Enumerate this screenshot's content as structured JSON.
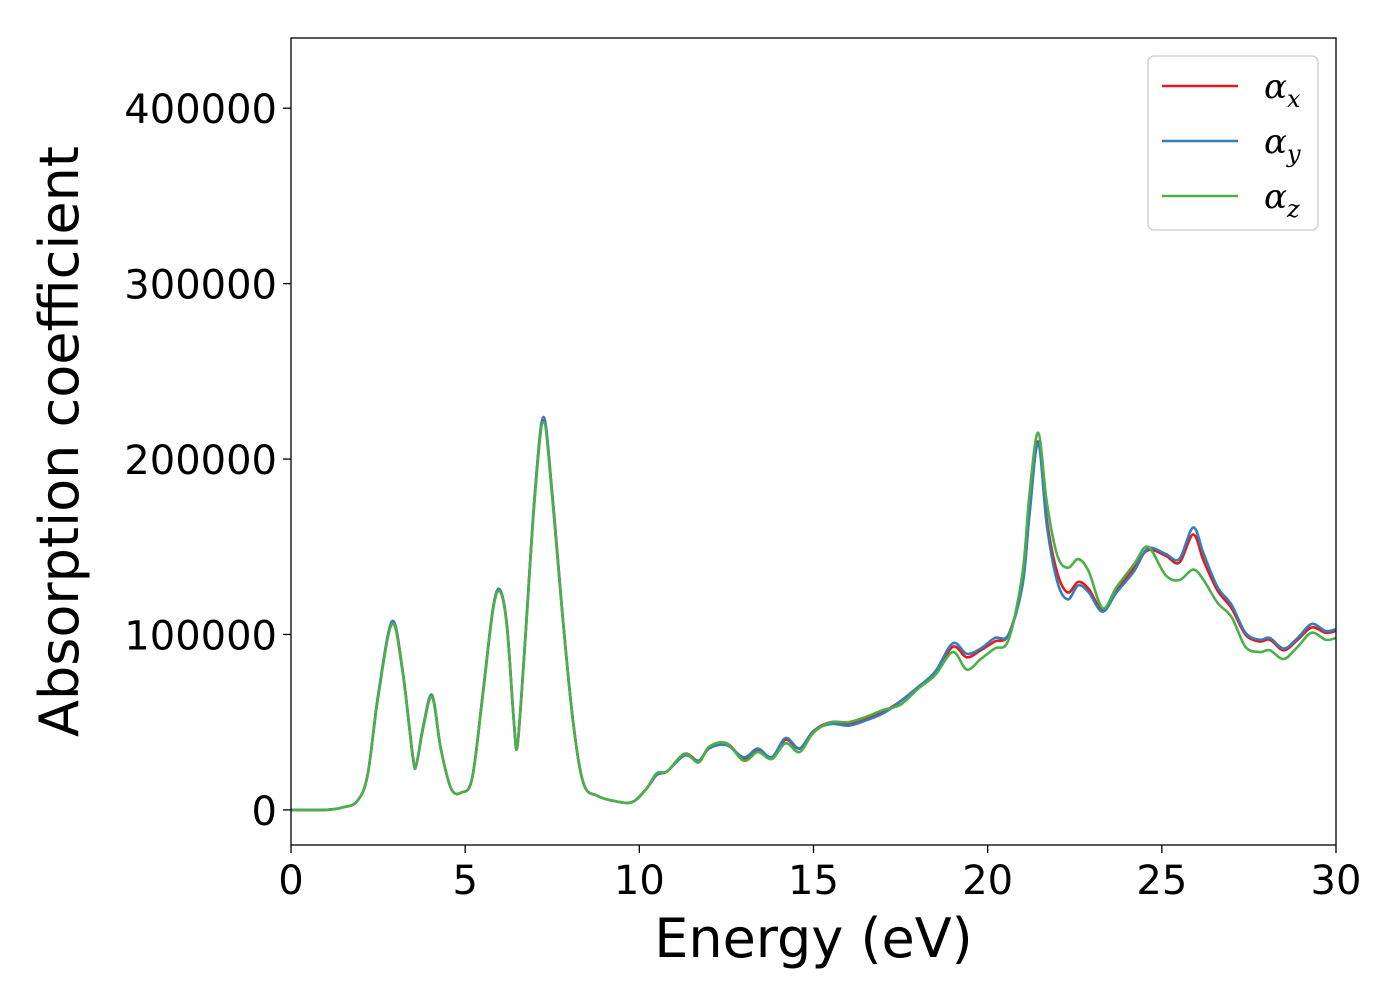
{
  "chart_data": {
    "type": "line",
    "title": "",
    "xlabel": "Energy (eV)",
    "ylabel": "Absorption coefficient",
    "xlim": [
      0,
      30
    ],
    "ylim": [
      -20000,
      440000
    ],
    "xticks": [
      0,
      5,
      10,
      15,
      20,
      25,
      30
    ],
    "xtick_labels": [
      "0",
      "5",
      "10",
      "15",
      "20",
      "25",
      "30"
    ],
    "yticks": [
      0,
      100000,
      200000,
      300000,
      400000
    ],
    "ytick_labels": [
      "0",
      "100000",
      "200000",
      "300000",
      "400000"
    ],
    "grid": false,
    "legend_position": "top-right",
    "series": [
      {
        "name": "α_x",
        "legend_base": "α",
        "legend_sub": "x",
        "color": "#e41a1c",
        "points": [
          [
            0,
            0
          ],
          [
            1,
            0
          ],
          [
            1.5,
            1500
          ],
          [
            1.9,
            5000
          ],
          [
            2.2,
            20000
          ],
          [
            2.5,
            65000
          ],
          [
            2.9,
            107000
          ],
          [
            3.2,
            80000
          ],
          [
            3.5,
            30000
          ],
          [
            3.6,
            26000
          ],
          [
            3.8,
            48000
          ],
          [
            4.05,
            65000
          ],
          [
            4.3,
            35000
          ],
          [
            4.6,
            12000
          ],
          [
            4.9,
            10000
          ],
          [
            5.2,
            18000
          ],
          [
            5.5,
            65000
          ],
          [
            5.8,
            115000
          ],
          [
            6.0,
            125000
          ],
          [
            6.2,
            105000
          ],
          [
            6.4,
            50000
          ],
          [
            6.5,
            37000
          ],
          [
            6.7,
            90000
          ],
          [
            7.0,
            180000
          ],
          [
            7.25,
            222000
          ],
          [
            7.5,
            180000
          ],
          [
            7.8,
            110000
          ],
          [
            8.1,
            50000
          ],
          [
            8.4,
            15000
          ],
          [
            8.8,
            8000
          ],
          [
            9.3,
            5000
          ],
          [
            9.8,
            4500
          ],
          [
            10.2,
            12000
          ],
          [
            10.5,
            20000
          ],
          [
            10.8,
            22000
          ],
          [
            11.3,
            32000
          ],
          [
            11.7,
            28000
          ],
          [
            12.0,
            35000
          ],
          [
            12.5,
            38000
          ],
          [
            13.0,
            29000
          ],
          [
            13.4,
            34000
          ],
          [
            13.8,
            30000
          ],
          [
            14.2,
            40000
          ],
          [
            14.6,
            35000
          ],
          [
            15.0,
            45000
          ],
          [
            15.5,
            50000
          ],
          [
            16.0,
            49000
          ],
          [
            16.5,
            52000
          ],
          [
            17.0,
            56000
          ],
          [
            17.5,
            62000
          ],
          [
            18.0,
            70000
          ],
          [
            18.5,
            78000
          ],
          [
            19.0,
            93000
          ],
          [
            19.4,
            87000
          ],
          [
            19.8,
            91000
          ],
          [
            20.2,
            96000
          ],
          [
            20.6,
            100000
          ],
          [
            21.0,
            130000
          ],
          [
            21.2,
            170000
          ],
          [
            21.45,
            210000
          ],
          [
            21.7,
            165000
          ],
          [
            22.0,
            135000
          ],
          [
            22.3,
            124000
          ],
          [
            22.6,
            130000
          ],
          [
            22.9,
            126000
          ],
          [
            23.3,
            114000
          ],
          [
            23.7,
            125000
          ],
          [
            24.2,
            138000
          ],
          [
            24.6,
            148000
          ],
          [
            25.1,
            145000
          ],
          [
            25.5,
            141000
          ],
          [
            25.9,
            157000
          ],
          [
            26.2,
            142000
          ],
          [
            26.6,
            125000
          ],
          [
            27.0,
            115000
          ],
          [
            27.4,
            100000
          ],
          [
            27.8,
            96000
          ],
          [
            28.1,
            97000
          ],
          [
            28.5,
            91000
          ],
          [
            28.9,
            97000
          ],
          [
            29.3,
            104000
          ],
          [
            29.7,
            101000
          ],
          [
            30.0,
            102000
          ]
        ]
      },
      {
        "name": "α_y",
        "legend_base": "α",
        "legend_sub": "y",
        "color": "#377eb8",
        "points": [
          [
            0,
            0
          ],
          [
            1,
            0
          ],
          [
            1.5,
            1500
          ],
          [
            1.9,
            5000
          ],
          [
            2.2,
            20000
          ],
          [
            2.5,
            65000
          ],
          [
            2.9,
            107500
          ],
          [
            3.2,
            80000
          ],
          [
            3.5,
            30000
          ],
          [
            3.6,
            26000
          ],
          [
            3.8,
            48000
          ],
          [
            4.05,
            65500
          ],
          [
            4.3,
            35000
          ],
          [
            4.6,
            12000
          ],
          [
            4.9,
            10000
          ],
          [
            5.2,
            18000
          ],
          [
            5.5,
            65000
          ],
          [
            5.8,
            115000
          ],
          [
            6.0,
            125500
          ],
          [
            6.2,
            105000
          ],
          [
            6.4,
            50000
          ],
          [
            6.5,
            37000
          ],
          [
            6.7,
            90000
          ],
          [
            7.0,
            180000
          ],
          [
            7.25,
            224000
          ],
          [
            7.5,
            180000
          ],
          [
            7.8,
            110000
          ],
          [
            8.1,
            50000
          ],
          [
            8.4,
            15000
          ],
          [
            8.8,
            8000
          ],
          [
            9.3,
            5000
          ],
          [
            9.8,
            4500
          ],
          [
            10.2,
            12000
          ],
          [
            10.5,
            20000
          ],
          [
            10.8,
            22000
          ],
          [
            11.3,
            31000
          ],
          [
            11.7,
            28000
          ],
          [
            12.0,
            35000
          ],
          [
            12.5,
            37000
          ],
          [
            13.0,
            30000
          ],
          [
            13.4,
            35000
          ],
          [
            13.8,
            30000
          ],
          [
            14.2,
            41000
          ],
          [
            14.6,
            35000
          ],
          [
            15.0,
            45000
          ],
          [
            15.5,
            49000
          ],
          [
            16.0,
            48000
          ],
          [
            16.5,
            51000
          ],
          [
            17.0,
            55000
          ],
          [
            17.5,
            62000
          ],
          [
            18.0,
            70000
          ],
          [
            18.5,
            79000
          ],
          [
            19.0,
            95000
          ],
          [
            19.4,
            89000
          ],
          [
            19.8,
            92000
          ],
          [
            20.2,
            98000
          ],
          [
            20.6,
            100000
          ],
          [
            21.0,
            128000
          ],
          [
            21.2,
            168000
          ],
          [
            21.45,
            209000
          ],
          [
            21.7,
            162000
          ],
          [
            22.0,
            130000
          ],
          [
            22.3,
            120000
          ],
          [
            22.6,
            128000
          ],
          [
            22.9,
            124000
          ],
          [
            23.3,
            113000
          ],
          [
            23.7,
            124000
          ],
          [
            24.2,
            136000
          ],
          [
            24.6,
            149000
          ],
          [
            25.1,
            146000
          ],
          [
            25.5,
            143000
          ],
          [
            25.9,
            161000
          ],
          [
            26.2,
            146000
          ],
          [
            26.6,
            127000
          ],
          [
            27.0,
            117000
          ],
          [
            27.4,
            101000
          ],
          [
            27.8,
            97000
          ],
          [
            28.1,
            98000
          ],
          [
            28.5,
            92000
          ],
          [
            28.9,
            98000
          ],
          [
            29.3,
            106000
          ],
          [
            29.7,
            102000
          ],
          [
            30.0,
            103000
          ]
        ]
      },
      {
        "name": "α_z",
        "legend_base": "α",
        "legend_sub": "z",
        "color": "#4daf4a",
        "points": [
          [
            0,
            0
          ],
          [
            1,
            0
          ],
          [
            1.5,
            1500
          ],
          [
            1.9,
            5000
          ],
          [
            2.2,
            20000
          ],
          [
            2.5,
            64000
          ],
          [
            2.9,
            106000
          ],
          [
            3.2,
            79000
          ],
          [
            3.5,
            30000
          ],
          [
            3.6,
            26000
          ],
          [
            3.8,
            47000
          ],
          [
            4.05,
            64500
          ],
          [
            4.3,
            35000
          ],
          [
            4.6,
            12000
          ],
          [
            4.9,
            10000
          ],
          [
            5.2,
            18000
          ],
          [
            5.5,
            64000
          ],
          [
            5.8,
            114000
          ],
          [
            6.0,
            124500
          ],
          [
            6.2,
            104000
          ],
          [
            6.4,
            50000
          ],
          [
            6.5,
            36500
          ],
          [
            6.7,
            89000
          ],
          [
            7.0,
            178000
          ],
          [
            7.25,
            221000
          ],
          [
            7.5,
            178000
          ],
          [
            7.8,
            109000
          ],
          [
            8.1,
            50000
          ],
          [
            8.4,
            15000
          ],
          [
            8.8,
            8000
          ],
          [
            9.3,
            5000
          ],
          [
            9.8,
            4500
          ],
          [
            10.2,
            12000
          ],
          [
            10.5,
            21000
          ],
          [
            10.8,
            22000
          ],
          [
            11.3,
            32000
          ],
          [
            11.7,
            27000
          ],
          [
            12.0,
            36000
          ],
          [
            12.5,
            38000
          ],
          [
            13.0,
            28000
          ],
          [
            13.4,
            33000
          ],
          [
            13.8,
            29000
          ],
          [
            14.2,
            38000
          ],
          [
            14.6,
            33000
          ],
          [
            15.0,
            44000
          ],
          [
            15.5,
            50000
          ],
          [
            16.0,
            50000
          ],
          [
            16.5,
            53000
          ],
          [
            17.0,
            57000
          ],
          [
            17.5,
            60000
          ],
          [
            18.0,
            69000
          ],
          [
            18.5,
            77000
          ],
          [
            19.0,
            90000
          ],
          [
            19.4,
            80000
          ],
          [
            19.8,
            86000
          ],
          [
            20.2,
            92000
          ],
          [
            20.6,
            97000
          ],
          [
            21.0,
            135000
          ],
          [
            21.2,
            180000
          ],
          [
            21.45,
            215000
          ],
          [
            21.7,
            175000
          ],
          [
            22.0,
            145000
          ],
          [
            22.3,
            138000
          ],
          [
            22.6,
            143000
          ],
          [
            22.9,
            136000
          ],
          [
            23.3,
            115000
          ],
          [
            23.7,
            127000
          ],
          [
            24.2,
            140000
          ],
          [
            24.6,
            150000
          ],
          [
            25.1,
            134000
          ],
          [
            25.5,
            131000
          ],
          [
            25.9,
            137000
          ],
          [
            26.2,
            131000
          ],
          [
            26.6,
            118000
          ],
          [
            27.0,
            110000
          ],
          [
            27.4,
            93000
          ],
          [
            27.8,
            90000
          ],
          [
            28.1,
            91000
          ],
          [
            28.5,
            86000
          ],
          [
            28.9,
            93000
          ],
          [
            29.3,
            101000
          ],
          [
            29.7,
            97000
          ],
          [
            30.0,
            98000
          ]
        ]
      }
    ]
  }
}
